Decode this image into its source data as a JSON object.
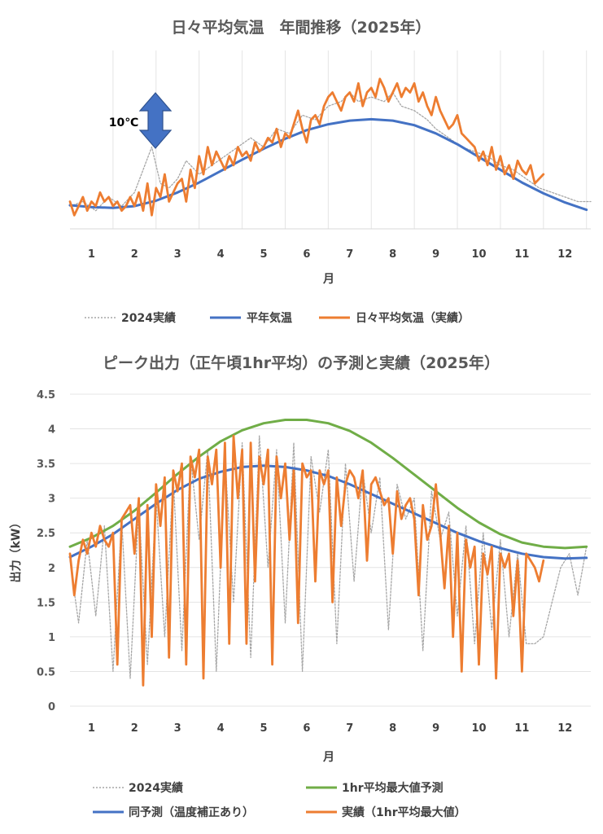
{
  "chart_data": [
    {
      "type": "line",
      "title": "日々平均気温　年間推移（2025年）",
      "xlabel": "月",
      "ylabel": "",
      "categories": [
        "1",
        "2",
        "3",
        "4",
        "5",
        "6",
        "7",
        "8",
        "9",
        "10",
        "11",
        "12"
      ],
      "grid": "vertical-monthly",
      "legend_position": "bottom",
      "annotation": "10℃",
      "colors": {
        "prev": "#a6a6a6",
        "normal": "#4472c4",
        "actual": "#ed7d31"
      },
      "legend": [
        "2024実績",
        "平年気温",
        "日々平均気温（実績）"
      ],
      "series": [
        {
          "name": "2024実績",
          "x": [
            0.5,
            0.8,
            1.1,
            1.4,
            1.7,
            2.0,
            2.2,
            2.4,
            2.6,
            2.8,
            3.0,
            3.2,
            3.5,
            3.8,
            4.1,
            4.4,
            4.7,
            5.0,
            5.3,
            5.6,
            5.9,
            6.2,
            6.5,
            6.8,
            7.0,
            7.2,
            7.5,
            7.8,
            8.0,
            8.2,
            8.5,
            8.8,
            9.0,
            9.3,
            9.6,
            9.9,
            10.2,
            10.5,
            10.8,
            11.1,
            11.4,
            11.7,
            12.0,
            12.3,
            12.6
          ],
          "values": [
            5,
            6,
            4,
            7,
            5,
            8,
            13,
            18,
            10,
            9,
            11,
            15,
            12,
            14,
            16,
            18,
            20,
            18,
            22,
            21,
            25,
            24,
            27,
            28,
            30,
            28,
            29,
            28,
            30,
            27,
            26,
            24,
            22,
            20,
            18,
            17,
            16,
            14,
            13,
            11,
            9,
            8,
            7,
            6,
            6
          ]
        },
        {
          "name": "平年気温",
          "x": [
            0.5,
            1.0,
            1.5,
            2.0,
            2.5,
            3.0,
            3.5,
            4.0,
            4.5,
            5.0,
            5.5,
            6.0,
            6.5,
            7.0,
            7.5,
            8.0,
            8.5,
            9.0,
            9.5,
            10.0,
            10.5,
            11.0,
            11.5,
            12.0,
            12.5
          ],
          "values": [
            5.2,
            4.8,
            4.6,
            5.0,
            6.2,
            8.0,
            10.2,
            12.7,
            15.2,
            17.6,
            19.8,
            21.7,
            23.0,
            23.8,
            24.1,
            23.8,
            22.8,
            21.0,
            18.6,
            15.8,
            13.0,
            10.2,
            7.8,
            5.8,
            4.2
          ]
        },
        {
          "name": "日々平均気温（実績）",
          "x": [
            0.5,
            0.6,
            0.7,
            0.8,
            0.9,
            1.0,
            1.1,
            1.2,
            1.3,
            1.4,
            1.5,
            1.6,
            1.7,
            1.8,
            1.9,
            2.0,
            2.1,
            2.2,
            2.3,
            2.4,
            2.5,
            2.6,
            2.7,
            2.8,
            2.9,
            3.0,
            3.1,
            3.2,
            3.3,
            3.4,
            3.5,
            3.6,
            3.7,
            3.8,
            3.9,
            4.0,
            4.1,
            4.2,
            4.3,
            4.4,
            4.5,
            4.6,
            4.7,
            4.8,
            4.9,
            5.0,
            5.1,
            5.2,
            5.3,
            5.4,
            5.5,
            5.6,
            5.7,
            5.8,
            5.9,
            6.0,
            6.1,
            6.2,
            6.3,
            6.4,
            6.5,
            6.6,
            6.7,
            6.8,
            6.9,
            7.0,
            7.1,
            7.2,
            7.3,
            7.4,
            7.5,
            7.6,
            7.7,
            7.8,
            7.9,
            8.0,
            8.1,
            8.2,
            8.3,
            8.4,
            8.5,
            8.6,
            8.7,
            8.8,
            8.9,
            9.0,
            9.1,
            9.2,
            9.3,
            9.4,
            9.5,
            9.6,
            9.7,
            9.8,
            9.9,
            10.0,
            10.1,
            10.2,
            10.3,
            10.4,
            10.5,
            10.6,
            10.7,
            10.8,
            10.9,
            11.0,
            11.1,
            11.2,
            11.3,
            11.4,
            11.5
          ],
          "values": [
            6,
            3,
            5,
            7,
            4,
            6,
            5,
            8,
            6,
            7,
            5,
            6,
            4,
            5,
            7,
            5,
            8,
            4,
            10,
            3,
            9,
            7,
            12,
            6,
            8,
            10,
            11,
            6,
            13,
            9,
            16,
            12,
            18,
            14,
            17,
            15,
            13,
            16,
            14,
            18,
            16,
            17,
            15,
            19,
            17,
            18,
            20,
            19,
            22,
            18,
            21,
            20,
            23,
            26,
            22,
            19,
            24,
            25,
            23,
            27,
            29,
            30,
            28,
            26,
            29,
            30,
            28,
            32,
            27,
            30,
            31,
            29,
            33,
            31,
            28,
            30,
            32,
            29,
            31,
            30,
            32,
            28,
            30,
            27,
            25,
            29,
            26,
            24,
            22,
            23,
            25,
            21,
            20,
            19,
            18,
            15,
            17,
            14,
            18,
            13,
            16,
            12,
            14,
            11,
            15,
            13,
            12,
            14,
            10,
            11,
            12
          ]
        }
      ]
    },
    {
      "type": "line",
      "title": "ピーク出力（正午頃1hr平均）の予測と実績（2025年）",
      "xlabel": "月",
      "ylabel": "出力（kW）",
      "categories": [
        "1",
        "2",
        "3",
        "4",
        "5",
        "6",
        "7",
        "8",
        "9",
        "10",
        "11",
        "12"
      ],
      "ylim": [
        0,
        4.5
      ],
      "yticks": [
        "0",
        "0.5",
        "1",
        "1.5",
        "2",
        "2.5",
        "3",
        "3.5",
        "4",
        "4.5"
      ],
      "grid": "horizontal",
      "legend_position": "bottom",
      "colors": {
        "prev": "#a6a6a6",
        "maxpred": "#70ad47",
        "pred": "#4472c4",
        "actual": "#ed7d31"
      },
      "legend": [
        "2024実績",
        "1hr平均最大値予測",
        "同予測（温度補正あり）",
        "実績（1hr平均最大値）"
      ],
      "series": [
        {
          "name": "2024実績",
          "x": [
            0.5,
            0.7,
            0.9,
            1.1,
            1.3,
            1.5,
            1.7,
            1.9,
            2.1,
            2.3,
            2.5,
            2.7,
            2.9,
            3.1,
            3.3,
            3.5,
            3.7,
            3.9,
            4.1,
            4.3,
            4.5,
            4.7,
            4.9,
            5.1,
            5.3,
            5.5,
            5.7,
            5.9,
            6.1,
            6.3,
            6.5,
            6.7,
            6.9,
            7.1,
            7.3,
            7.5,
            7.7,
            7.9,
            8.1,
            8.3,
            8.5,
            8.7,
            8.9,
            9.1,
            9.3,
            9.5,
            9.7,
            9.9,
            10.1,
            10.3,
            10.5,
            10.7,
            10.9,
            11.1,
            11.3,
            11.5,
            11.7,
            11.9,
            12.1,
            12.3,
            12.5
          ],
          "values": [
            2.1,
            1.2,
            2.4,
            1.3,
            2.6,
            0.5,
            2.7,
            0.4,
            2.9,
            0.6,
            3.0,
            1.0,
            3.3,
            0.8,
            3.6,
            2.4,
            3.7,
            0.5,
            3.6,
            1.5,
            3.8,
            0.7,
            3.9,
            2.0,
            3.7,
            1.2,
            3.8,
            0.5,
            3.6,
            2.8,
            3.7,
            0.9,
            3.5,
            1.8,
            3.4,
            2.5,
            3.3,
            1.1,
            3.2,
            2.7,
            3.0,
            0.8,
            3.1,
            2.4,
            2.8,
            1.3,
            2.6,
            0.9,
            2.5,
            1.1,
            2.4,
            1.0,
            2.2,
            0.9,
            0.9,
            1.0,
            1.5,
            2.0,
            2.2,
            1.6,
            2.3
          ]
        },
        {
          "name": "1hr平均最大値予測",
          "x": [
            0.5,
            1.0,
            1.5,
            2.0,
            2.5,
            3.0,
            3.5,
            4.0,
            4.5,
            5.0,
            5.5,
            6.0,
            6.5,
            7.0,
            7.5,
            8.0,
            8.5,
            9.0,
            9.5,
            10.0,
            10.5,
            11.0,
            11.5,
            12.0,
            12.5
          ],
          "values": [
            2.3,
            2.43,
            2.6,
            2.82,
            3.08,
            3.35,
            3.6,
            3.82,
            3.98,
            4.08,
            4.13,
            4.13,
            4.08,
            3.97,
            3.8,
            3.58,
            3.34,
            3.1,
            2.86,
            2.65,
            2.48,
            2.36,
            2.3,
            2.28,
            2.3
          ]
        },
        {
          "name": "同予測（温度補正あり）",
          "x": [
            0.5,
            1.0,
            1.5,
            2.0,
            2.5,
            3.0,
            3.5,
            4.0,
            4.5,
            5.0,
            5.5,
            6.0,
            6.5,
            7.0,
            7.5,
            8.0,
            8.5,
            9.0,
            9.5,
            10.0,
            10.5,
            11.0,
            11.5,
            12.0,
            12.5
          ],
          "values": [
            2.15,
            2.3,
            2.48,
            2.7,
            2.92,
            3.12,
            3.28,
            3.38,
            3.45,
            3.47,
            3.45,
            3.4,
            3.32,
            3.2,
            3.06,
            2.92,
            2.78,
            2.64,
            2.5,
            2.38,
            2.28,
            2.2,
            2.15,
            2.13,
            2.14
          ]
        },
        {
          "name": "実績（1hr平均最大値）",
          "x": [
            0.5,
            0.6,
            0.7,
            0.8,
            0.9,
            1.0,
            1.1,
            1.2,
            1.3,
            1.4,
            1.5,
            1.6,
            1.7,
            1.8,
            1.9,
            2.0,
            2.1,
            2.2,
            2.3,
            2.4,
            2.5,
            2.6,
            2.7,
            2.8,
            2.9,
            3.0,
            3.1,
            3.2,
            3.3,
            3.4,
            3.5,
            3.6,
            3.7,
            3.8,
            3.9,
            4.0,
            4.1,
            4.2,
            4.3,
            4.4,
            4.5,
            4.6,
            4.7,
            4.8,
            4.9,
            5.0,
            5.1,
            5.2,
            5.3,
            5.4,
            5.5,
            5.6,
            5.7,
            5.8,
            5.9,
            6.0,
            6.1,
            6.2,
            6.3,
            6.4,
            6.5,
            6.6,
            6.7,
            6.8,
            6.9,
            7.0,
            7.1,
            7.2,
            7.3,
            7.4,
            7.5,
            7.6,
            7.7,
            7.8,
            7.9,
            8.0,
            8.1,
            8.2,
            8.3,
            8.4,
            8.5,
            8.6,
            8.7,
            8.8,
            8.9,
            9.0,
            9.1,
            9.2,
            9.3,
            9.4,
            9.5,
            9.6,
            9.7,
            9.8,
            9.9,
            10.0,
            10.1,
            10.2,
            10.3,
            10.4,
            10.5,
            10.6,
            10.7,
            10.8,
            10.9,
            11.0,
            11.1,
            11.2,
            11.3,
            11.4,
            11.5
          ],
          "values": [
            2.2,
            1.6,
            2.1,
            2.4,
            2.2,
            2.5,
            2.3,
            2.6,
            2.4,
            2.3,
            2.5,
            0.6,
            2.7,
            2.8,
            2.9,
            2.2,
            3.0,
            0.3,
            2.9,
            1.0,
            3.2,
            2.6,
            3.3,
            0.7,
            3.4,
            3.1,
            3.5,
            0.6,
            3.6,
            3.3,
            3.7,
            0.4,
            3.6,
            3.2,
            3.7,
            2.0,
            3.8,
            0.9,
            3.9,
            3.0,
            3.7,
            0.9,
            3.8,
            1.8,
            3.6,
            3.2,
            3.7,
            0.6,
            3.6,
            3.0,
            3.5,
            2.4,
            3.4,
            1.2,
            3.5,
            3.3,
            3.4,
            1.8,
            3.4,
            3.2,
            3.4,
            1.5,
            3.3,
            2.6,
            3.2,
            3.4,
            3.3,
            3.0,
            3.4,
            2.1,
            3.2,
            3.3,
            3.1,
            2.9,
            3.0,
            2.2,
            3.1,
            2.7,
            2.9,
            3.0,
            2.7,
            1.6,
            2.9,
            2.4,
            2.6,
            3.2,
            2.5,
            1.7,
            2.6,
            1.0,
            2.5,
            0.5,
            2.4,
            2.0,
            2.3,
            0.6,
            2.2,
            1.9,
            2.3,
            0.4,
            2.2,
            2.0,
            2.2,
            1.3,
            2.1,
            0.5,
            2.2,
            2.1,
            2.0,
            1.8,
            2.1
          ]
        }
      ]
    }
  ]
}
